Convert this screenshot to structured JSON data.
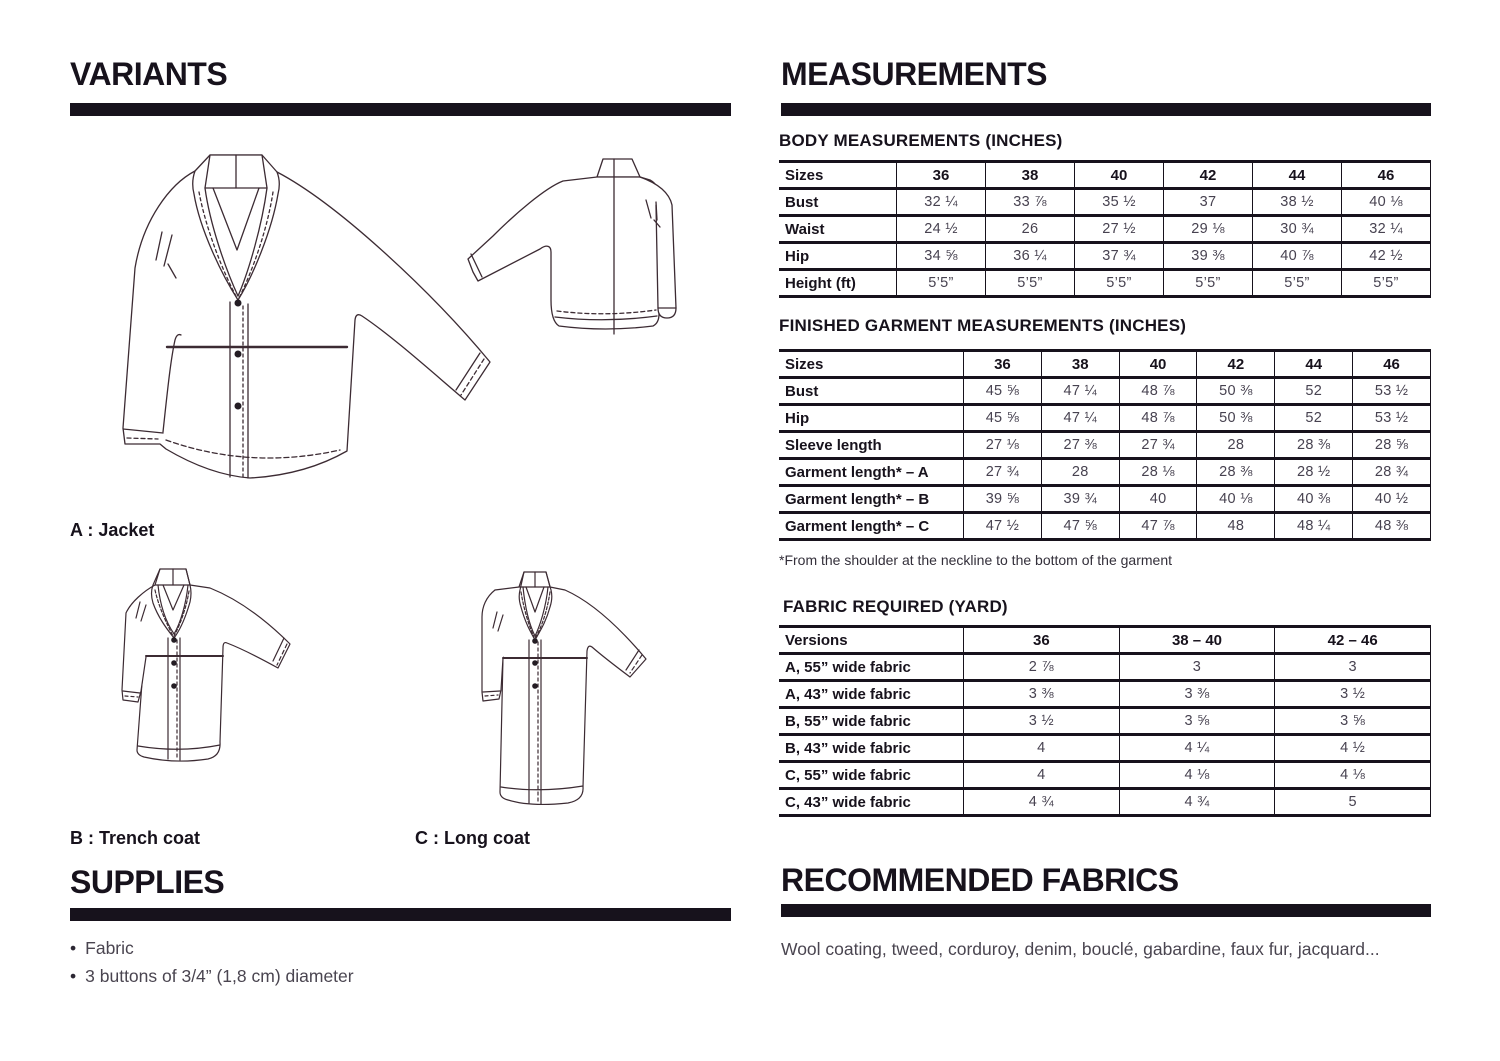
{
  "variants": {
    "title": "VARIANTS",
    "items": [
      {
        "label": "A :  Jacket"
      },
      {
        "label": "B :  Trench coat"
      },
      {
        "label": "C :  Long coat"
      }
    ]
  },
  "supplies": {
    "title": "SUPPLIES",
    "bullet": "•",
    "items": [
      "Fabric",
      "3 buttons of 3/4” (1,8 cm) diameter"
    ]
  },
  "measurements": {
    "title": "MEASUREMENTS",
    "body_table": {
      "title": "BODY MEASUREMENTS (INCHES)",
      "header": [
        "Sizes",
        "36",
        "38",
        "40",
        "42",
        "44",
        "46"
      ],
      "rows": [
        {
          "label": "Bust",
          "values": [
            "32 ¼",
            "33 ⅞",
            "35 ½",
            "37",
            "38 ½",
            "40 ⅛"
          ]
        },
        {
          "label": "Waist",
          "values": [
            "24 ½",
            "26",
            "27 ½",
            "29 ⅛",
            "30 ¾",
            "32 ¼"
          ]
        },
        {
          "label": "Hip",
          "values": [
            "34 ⅝",
            "36 ¼",
            "37 ¾",
            "39 ⅜",
            "40 ⅞",
            "42 ½"
          ]
        },
        {
          "label": "Height (ft)",
          "values": [
            "5’5”",
            "5’5”",
            "5’5”",
            "5’5”",
            "5’5”",
            "5’5”"
          ]
        }
      ]
    },
    "garment_table": {
      "title": "FINISHED GARMENT MEASUREMENTS (INCHES)",
      "header": [
        "Sizes",
        "36",
        "38",
        "40",
        "42",
        "44",
        "46"
      ],
      "rows": [
        {
          "label": "Bust",
          "values": [
            "45 ⅝",
            "47 ¼",
            "48 ⅞",
            "50 ⅜",
            "52",
            "53 ½"
          ]
        },
        {
          "label": "Hip",
          "values": [
            "45 ⅝",
            "47 ¼",
            "48 ⅞",
            "50 ⅜",
            "52",
            "53 ½"
          ]
        },
        {
          "label": "Sleeve length",
          "values": [
            "27 ⅛",
            "27 ⅜",
            "27 ¾",
            "28",
            "28 ⅜",
            "28 ⅝"
          ]
        },
        {
          "label": "Garment length* – A",
          "values": [
            "27 ¾",
            "28",
            "28 ⅛",
            "28 ⅜",
            "28 ½",
            "28 ¾"
          ]
        },
        {
          "label": "Garment length* – B",
          "values": [
            "39 ⅝",
            "39 ¾",
            "40",
            "40 ⅛",
            "40 ⅜",
            "40 ½"
          ]
        },
        {
          "label": "Garment length* – C",
          "values": [
            "47 ½",
            "47 ⅝",
            "47 ⅞",
            "48",
            "48 ¼",
            "48 ⅜"
          ]
        }
      ],
      "footnote": "*From the shoulder at the neckline to the bottom of the garment"
    },
    "fabric_table": {
      "title": "FABRIC REQUIRED (YARD)",
      "header": [
        "Versions",
        "36",
        "38 – 40",
        "42 – 46"
      ],
      "rows": [
        {
          "label": "A, 55” wide fabric",
          "values": [
            "2 ⅞",
            "3",
            "3"
          ]
        },
        {
          "label": "A,  43” wide fabric",
          "values": [
            "3 ⅜",
            "3 ⅜",
            "3 ½"
          ]
        },
        {
          "label": "B, 55” wide fabric",
          "values": [
            "3 ½",
            "3 ⅝",
            "3 ⅝"
          ]
        },
        {
          "label": "B,  43” wide fabric",
          "values": [
            "4",
            "4 ¼",
            "4 ½"
          ]
        },
        {
          "label": "C, 55” wide fabric",
          "values": [
            "4",
            "4 ⅛",
            "4 ⅛"
          ]
        },
        {
          "label": "C,  43” wide fabric",
          "values": [
            "4 ¾",
            "4 ¾",
            "5"
          ]
        }
      ]
    }
  },
  "recommended_fabrics": {
    "title": "RECOMMENDED FABRICS",
    "text": "Wool coating, tweed, corduroy, denim, bouclé, gabardine, faux fur, jacquard..."
  }
}
